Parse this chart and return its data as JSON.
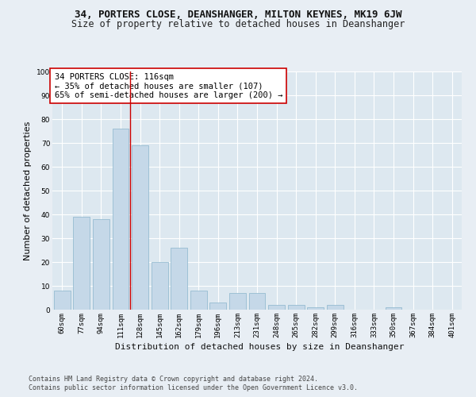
{
  "title": "34, PORTERS CLOSE, DEANSHANGER, MILTON KEYNES, MK19 6JW",
  "subtitle": "Size of property relative to detached houses in Deanshanger",
  "xlabel": "Distribution of detached houses by size in Deanshanger",
  "ylabel": "Number of detached properties",
  "footer_line1": "Contains HM Land Registry data © Crown copyright and database right 2024.",
  "footer_line2": "Contains public sector information licensed under the Open Government Licence v3.0.",
  "categories": [
    "60sqm",
    "77sqm",
    "94sqm",
    "111sqm",
    "128sqm",
    "145sqm",
    "162sqm",
    "179sqm",
    "196sqm",
    "213sqm",
    "231sqm",
    "248sqm",
    "265sqm",
    "282sqm",
    "299sqm",
    "316sqm",
    "333sqm",
    "350sqm",
    "367sqm",
    "384sqm",
    "401sqm"
  ],
  "values": [
    8,
    39,
    38,
    76,
    69,
    20,
    26,
    8,
    3,
    7,
    7,
    2,
    2,
    1,
    2,
    0,
    0,
    1,
    0,
    0,
    0
  ],
  "bar_color": "#c5d8e8",
  "bar_edge_color": "#8ab4cc",
  "vline_x_index": 3,
  "vline_color": "#cc0000",
  "annotation_text": "34 PORTERS CLOSE: 116sqm\n← 35% of detached houses are smaller (107)\n65% of semi-detached houses are larger (200) →",
  "annotation_box_color": "#ffffff",
  "annotation_box_edge": "#cc0000",
  "ylim": [
    0,
    100
  ],
  "yticks": [
    0,
    10,
    20,
    30,
    40,
    50,
    60,
    70,
    80,
    90,
    100
  ],
  "bg_color": "#e8eef4",
  "plot_bg_color": "#dde8f0",
  "grid_color": "#ffffff",
  "title_fontsize": 9,
  "subtitle_fontsize": 8.5,
  "ylabel_fontsize": 8,
  "xlabel_fontsize": 8,
  "tick_fontsize": 6.5,
  "annotation_fontsize": 7.5,
  "footer_fontsize": 6
}
